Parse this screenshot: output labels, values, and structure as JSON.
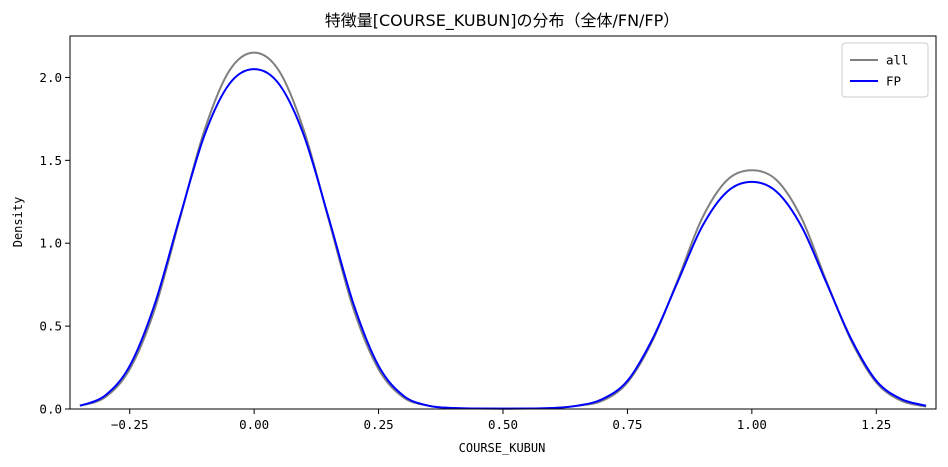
{
  "chart_data": {
    "type": "line",
    "title": "特徴量[COURSE_KUBUN]の分布（全体/FN/FP）",
    "xlabel": "COURSE_KUBUN",
    "ylabel": "Density",
    "xlim": [
      -0.37,
      1.37
    ],
    "ylim": [
      0,
      2.25
    ],
    "x_ticks": [
      -0.25,
      0.0,
      0.25,
      0.5,
      0.75,
      1.0,
      1.25
    ],
    "x_tick_labels": [
      "−0.25",
      "0.00",
      "0.25",
      "0.50",
      "0.75",
      "1.00",
      "1.25"
    ],
    "y_ticks": [
      0.0,
      0.5,
      1.0,
      1.5,
      2.0
    ],
    "y_tick_labels": [
      "0.0",
      "0.5",
      "1.0",
      "1.5",
      "2.0"
    ],
    "grid": false,
    "legend_position": "top-right",
    "series": [
      {
        "name": "all",
        "color": "#808080",
        "x": [
          -0.35,
          -0.3,
          -0.25,
          -0.2,
          -0.15,
          -0.1,
          -0.05,
          0.0,
          0.05,
          0.1,
          0.15,
          0.2,
          0.25,
          0.3,
          0.35,
          0.4,
          0.45,
          0.5,
          0.55,
          0.6,
          0.65,
          0.7,
          0.75,
          0.8,
          0.85,
          0.9,
          0.95,
          1.0,
          1.05,
          1.1,
          1.15,
          1.2,
          1.25,
          1.3,
          1.35
        ],
        "y": [
          0.02,
          0.07,
          0.24,
          0.6,
          1.14,
          1.68,
          2.04,
          2.15,
          2.04,
          1.68,
          1.14,
          0.6,
          0.24,
          0.07,
          0.02,
          0.005,
          0.003,
          0.002,
          0.003,
          0.005,
          0.02,
          0.05,
          0.16,
          0.41,
          0.77,
          1.15,
          1.38,
          1.44,
          1.38,
          1.15,
          0.77,
          0.41,
          0.16,
          0.05,
          0.015
        ]
      },
      {
        "name": "FP",
        "color": "#0000ff",
        "x": [
          -0.35,
          -0.3,
          -0.25,
          -0.2,
          -0.15,
          -0.1,
          -0.05,
          0.0,
          0.05,
          0.1,
          0.15,
          0.2,
          0.25,
          0.3,
          0.35,
          0.4,
          0.45,
          0.5,
          0.55,
          0.6,
          0.65,
          0.7,
          0.75,
          0.8,
          0.85,
          0.9,
          0.95,
          1.0,
          1.05,
          1.1,
          1.15,
          1.2,
          1.25,
          1.3,
          1.35
        ],
        "y": [
          0.02,
          0.08,
          0.26,
          0.63,
          1.15,
          1.65,
          1.96,
          2.05,
          1.96,
          1.65,
          1.15,
          0.63,
          0.26,
          0.08,
          0.02,
          0.006,
          0.003,
          0.002,
          0.003,
          0.006,
          0.02,
          0.06,
          0.17,
          0.42,
          0.76,
          1.1,
          1.31,
          1.37,
          1.31,
          1.1,
          0.76,
          0.42,
          0.17,
          0.06,
          0.02
        ]
      }
    ]
  }
}
